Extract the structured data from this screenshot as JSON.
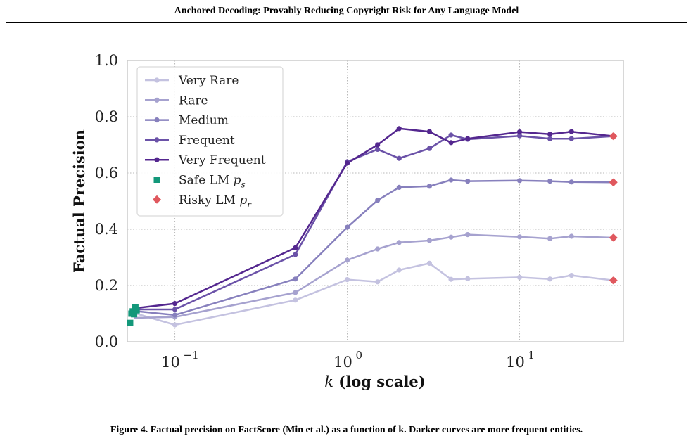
{
  "header": {
    "title": "Anchored Decoding: Provably Reducing Copyright Risk for Any Language Model"
  },
  "chart_data": {
    "type": "line",
    "title": "",
    "xlabel": "k (log scale)",
    "ylabel": "Factual Precision",
    "xscale": "log",
    "xlim": [
      0.053,
      40
    ],
    "ylim": [
      0.0,
      1.0
    ],
    "xticks": [
      {
        "value": 0.1,
        "base": "10",
        "exp": "−1"
      },
      {
        "value": 1,
        "base": "10",
        "exp": "0"
      },
      {
        "value": 10,
        "base": "10",
        "exp": "1"
      }
    ],
    "yticks": [
      "0.0",
      "0.2",
      "0.4",
      "0.6",
      "0.8",
      "1.0"
    ],
    "grid": true,
    "legend_position": "top-left",
    "x": [
      0.1,
      0.5,
      1,
      1.5,
      2,
      3,
      4,
      5,
      10,
      15,
      20,
      35
    ],
    "series": [
      {
        "name": "Very Rare",
        "color": "#c4c2e0",
        "start": [
          0.056,
          0.105
        ],
        "values": [
          0.06,
          0.148,
          0.221,
          0.213,
          0.255,
          0.279,
          0.222,
          0.224,
          0.229,
          0.223,
          0.236,
          0.218
        ]
      },
      {
        "name": "Rare",
        "color": "#a6a2cf",
        "start": [
          0.058,
          0.085
        ],
        "values": [
          0.088,
          0.175,
          0.29,
          0.33,
          0.353,
          0.36,
          0.372,
          0.381,
          0.373,
          0.367,
          0.375,
          0.37
        ]
      },
      {
        "name": "Medium",
        "color": "#8780bd",
        "start": [
          0.057,
          0.11
        ],
        "values": [
          0.095,
          0.223,
          0.407,
          0.503,
          0.549,
          0.553,
          0.575,
          0.571,
          0.573,
          0.571,
          0.568,
          0.567
        ]
      },
      {
        "name": "Frequent",
        "color": "#6b52a8",
        "start": [
          0.059,
          0.115
        ],
        "values": [
          0.115,
          0.31,
          0.64,
          0.684,
          0.652,
          0.687,
          0.735,
          0.72,
          0.732,
          0.722,
          0.722,
          0.731
        ]
      },
      {
        "name": "Very Frequent",
        "color": "#54278f",
        "start": [
          0.06,
          0.12
        ],
        "values": [
          0.136,
          0.334,
          0.635,
          0.7,
          0.758,
          0.747,
          0.708,
          0.722,
          0.746,
          0.738,
          0.747,
          0.731
        ]
      }
    ],
    "safe_lm": {
      "name": "Safe LM p_s",
      "color": "#13987a",
      "points": [
        [
          0.055,
          0.067
        ],
        [
          0.056,
          0.1
        ],
        [
          0.057,
          0.108
        ],
        [
          0.058,
          0.098
        ],
        [
          0.059,
          0.122
        ],
        [
          0.06,
          0.112
        ]
      ]
    },
    "risky_lm": {
      "name": "Risky LM p_r",
      "color": "#e0585e",
      "points": [
        [
          35,
          0.218
        ],
        [
          35,
          0.37
        ],
        [
          35,
          0.567
        ],
        [
          35,
          0.731
        ]
      ]
    }
  },
  "caption": "Figure 4. Factual precision on FactScore (Min et al.) as a function of k. Darker curves are more frequent entities."
}
